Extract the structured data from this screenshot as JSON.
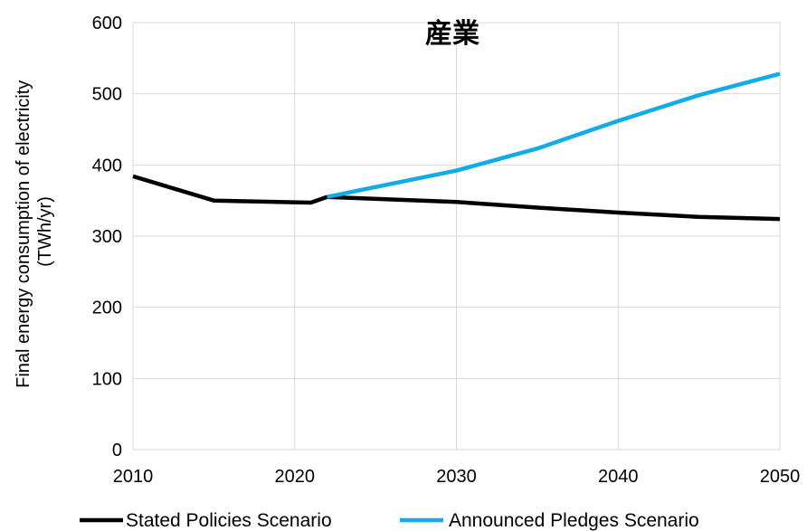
{
  "chart_data": {
    "type": "line",
    "title": "産業",
    "ylabel_line1": "Final energy consumption of electricity",
    "ylabel_line2": "(TWh/yr)",
    "xlim": [
      2010,
      2050
    ],
    "ylim": [
      0,
      600
    ],
    "x_ticks": [
      2010,
      2020,
      2030,
      2040,
      2050
    ],
    "y_ticks": [
      0,
      100,
      200,
      300,
      400,
      500,
      600
    ],
    "grid": true,
    "legend_position": "bottom",
    "series": [
      {
        "name": "Stated Policies Scenario",
        "color": "#000000",
        "points": [
          [
            2010,
            384
          ],
          [
            2015,
            350
          ],
          [
            2021,
            347
          ],
          [
            2022,
            355
          ],
          [
            2030,
            348
          ],
          [
            2035,
            340
          ],
          [
            2040,
            333
          ],
          [
            2045,
            327
          ],
          [
            2050,
            324
          ]
        ]
      },
      {
        "name": "Announced Pledges Scenario",
        "color": "#12ABE8",
        "points": [
          [
            2022,
            355
          ],
          [
            2030,
            392
          ],
          [
            2035,
            423
          ],
          [
            2040,
            462
          ],
          [
            2045,
            498
          ],
          [
            2050,
            528
          ]
        ]
      }
    ]
  }
}
